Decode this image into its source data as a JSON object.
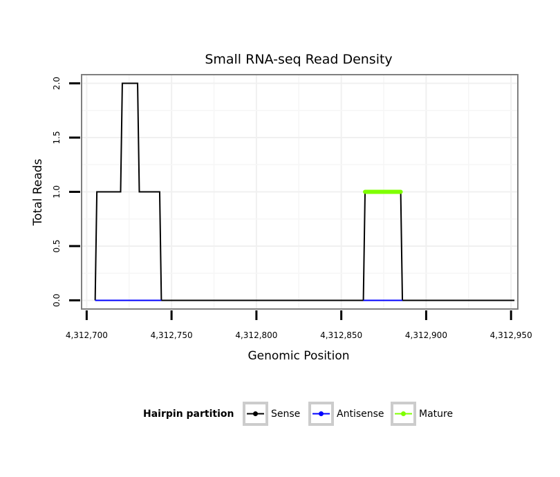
{
  "chart_data": {
    "type": "line",
    "title": "Small RNA-seq Read Density",
    "xlabel": "Genomic Position",
    "ylabel": "Total Reads",
    "xlim": [
      4312697,
      4312954
    ],
    "ylim": [
      -0.08,
      2.08
    ],
    "x_ticks": [
      4312700,
      4312750,
      4312800,
      4312850,
      4312900,
      4312950
    ],
    "x_tick_labels": [
      "4,312,700",
      "4,312,750",
      "4,312,800",
      "4,312,850",
      "4,312,900",
      "4,312,950"
    ],
    "y_ticks": [
      0,
      0.5,
      1,
      1.5,
      2
    ],
    "y_tick_labels": [
      "0.0",
      "0.5",
      "1.0",
      "1.5",
      "2.0"
    ],
    "grid": true,
    "legend": {
      "title": "Hairpin partition",
      "position": "bottom",
      "entries": [
        {
          "label": "Sense",
          "color": "#000000"
        },
        {
          "label": "Antisense",
          "color": "#0000ff"
        },
        {
          "label": "Mature",
          "color": "#7fff00"
        }
      ]
    },
    "series": [
      {
        "name": "Sense",
        "color": "#000000",
        "x": [
          4312705,
          4312706,
          4312720,
          4312721,
          4312730,
          4312731,
          4312743,
          4312744,
          4312863,
          4312864,
          4312885,
          4312886,
          4312952
        ],
        "y": [
          0,
          1,
          1,
          2,
          2,
          1,
          1,
          0,
          0,
          1,
          1,
          0,
          0
        ]
      },
      {
        "name": "Antisense",
        "color": "#0000ff",
        "x": [
          4312705,
          4312744,
          4312863,
          4312886
        ],
        "y": [
          0,
          0,
          0,
          0
        ],
        "segments": true
      },
      {
        "name": "Mature",
        "color": "#7fff00",
        "x": [
          4312864,
          4312885
        ],
        "y": [
          1,
          1
        ]
      }
    ]
  }
}
